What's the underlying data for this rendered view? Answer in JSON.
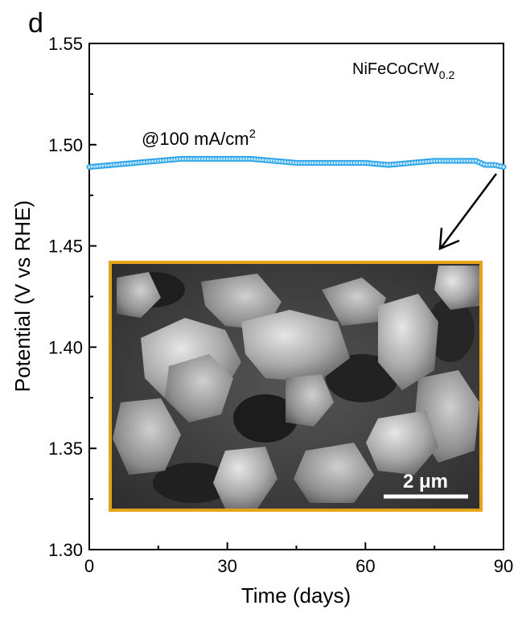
{
  "panel_label": "d",
  "chart_data": {
    "type": "line",
    "xlabel": "Time (days)",
    "ylabel": "Potential (V vs RHE)",
    "xlim": [
      0,
      90
    ],
    "ylim": [
      1.3,
      1.55
    ],
    "xticks": [
      0,
      30,
      60,
      90
    ],
    "xtick_labels": [
      "0",
      "30",
      "60",
      "90"
    ],
    "yticks": [
      1.3,
      1.35,
      1.4,
      1.45,
      1.5,
      1.55
    ],
    "ytick_labels": [
      "1.30",
      "1.35",
      "1.40",
      "1.45",
      "1.50",
      "1.55"
    ],
    "series_color": "#29a3e8",
    "series": [
      {
        "x": [
          0,
          5,
          10,
          15,
          20,
          25,
          30,
          35,
          40,
          45,
          50,
          55,
          60,
          65,
          70,
          75,
          80,
          84,
          86,
          88,
          90
        ],
        "y": [
          1.489,
          1.49,
          1.491,
          1.492,
          1.493,
          1.493,
          1.493,
          1.493,
          1.492,
          1.491,
          1.491,
          1.491,
          1.491,
          1.49,
          1.491,
          1.492,
          1.492,
          1.492,
          1.49,
          1.49,
          1.489
        ]
      }
    ],
    "annotations": {
      "sample_prefix": "NiFeCoCrW",
      "sample_subscript": "0.2",
      "current_prefix": "@100 mA/cm",
      "current_superscript": "2"
    },
    "inset": {
      "border_color": "#e3a41c",
      "scale_bar_label": "2 μm"
    }
  }
}
